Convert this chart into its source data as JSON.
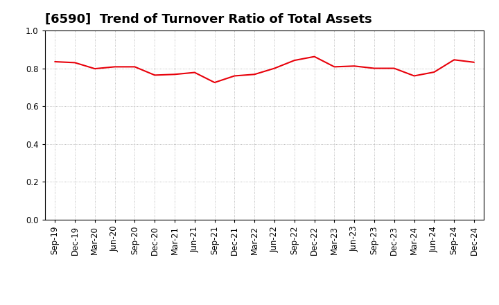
{
  "title": "[6590]  Trend of Turnover Ratio of Total Assets",
  "labels": [
    "Sep-19",
    "Dec-19",
    "Mar-20",
    "Jun-20",
    "Sep-20",
    "Dec-20",
    "Mar-21",
    "Jun-21",
    "Sep-21",
    "Dec-21",
    "Mar-22",
    "Jun-22",
    "Sep-22",
    "Dec-22",
    "Mar-23",
    "Jun-23",
    "Sep-23",
    "Dec-23",
    "Mar-24",
    "Jun-24",
    "Sep-24",
    "Dec-24"
  ],
  "values": [
    0.835,
    0.83,
    0.798,
    0.808,
    0.808,
    0.764,
    0.768,
    0.778,
    0.725,
    0.76,
    0.768,
    0.8,
    0.842,
    0.862,
    0.808,
    0.812,
    0.8,
    0.8,
    0.76,
    0.78,
    0.845,
    0.832
  ],
  "line_color": "#e8000a",
  "ylim": [
    0.0,
    1.0
  ],
  "yticks": [
    0.0,
    0.2,
    0.4,
    0.6,
    0.8,
    1.0
  ],
  "background_color": "#ffffff",
  "grid_color": "#aaaaaa",
  "title_fontsize": 13,
  "tick_fontsize": 8.5
}
